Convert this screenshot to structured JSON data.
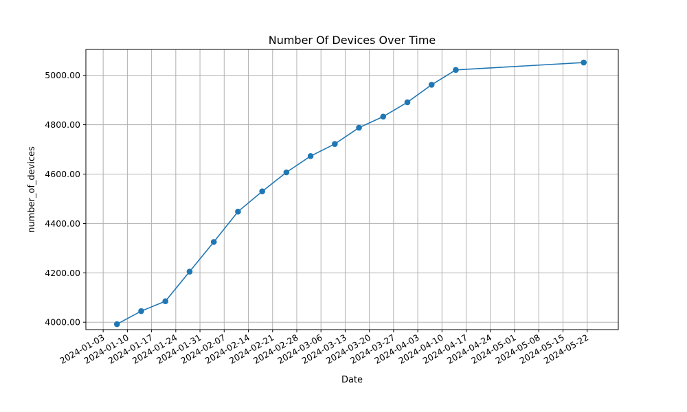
{
  "chart_data": {
    "type": "line",
    "title": "Number Of Devices Over Time",
    "xlabel": "Date",
    "ylabel": "number_of_devices",
    "xlim": [
      "2023-12-29",
      "2024-05-31"
    ],
    "ylim": [
      3970,
      5105
    ],
    "grid": true,
    "line_color": "#1f77b4",
    "x_ticks": [
      "2024-01-03",
      "2024-01-10",
      "2024-01-17",
      "2024-01-24",
      "2024-01-31",
      "2024-02-07",
      "2024-02-14",
      "2024-02-21",
      "2024-02-28",
      "2024-03-06",
      "2024-03-13",
      "2024-03-20",
      "2024-03-27",
      "2024-04-03",
      "2024-04-10",
      "2024-04-17",
      "2024-04-24",
      "2024-05-01",
      "2024-05-08",
      "2024-05-15",
      "2024-05-22"
    ],
    "y_ticks": [
      4000,
      4200,
      4400,
      4600,
      4800,
      5000
    ],
    "y_tick_labels": [
      "4000.00",
      "4200.00",
      "4400.00",
      "4600.00",
      "4800.00",
      "5000.00"
    ],
    "x": [
      "2024-01-07",
      "2024-01-14",
      "2024-01-21",
      "2024-01-28",
      "2024-02-04",
      "2024-02-11",
      "2024-02-18",
      "2024-02-25",
      "2024-03-03",
      "2024-03-10",
      "2024-03-17",
      "2024-03-24",
      "2024-03-31",
      "2024-04-07",
      "2024-04-14",
      "2024-05-21"
    ],
    "series": [
      {
        "values": [
          3992,
          4045,
          4085,
          4205,
          4325,
          4448,
          4530,
          4607,
          4673,
          4722,
          4788,
          4833,
          4891,
          4962,
          5022,
          5052
        ]
      }
    ]
  }
}
